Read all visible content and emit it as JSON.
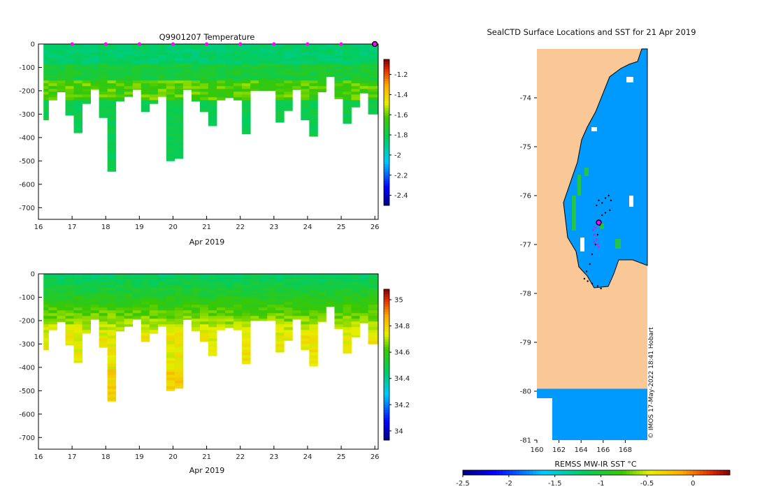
{
  "figure": {
    "credit": "© IMOS 17-May-2022 18:41 Hobart"
  },
  "chart_data": [
    {
      "type": "heatmap",
      "name": "temperature-section",
      "title": "Q9901207  Temperature",
      "xlabel": "Apr 2019",
      "xlim": [
        16,
        26.1
      ],
      "xticks": [
        16,
        17,
        18,
        19,
        20,
        21,
        22,
        23,
        24,
        25,
        26
      ],
      "ylabel": "",
      "ylim": [
        -750,
        0
      ],
      "yticks": [
        0,
        -100,
        -200,
        -300,
        -400,
        -500,
        -600,
        -700
      ],
      "colorbar": {
        "min": -2.5,
        "max": -1.05,
        "ticks": [
          -1.2,
          -1.4,
          -1.6,
          -1.8,
          -2,
          -2.2,
          -2.4
        ]
      },
      "surface_markers_days": [
        17,
        18,
        19,
        20,
        21,
        22,
        23,
        24,
        25
      ],
      "current_profile_day": 26,
      "profiles": [
        {
          "x0": 16.15,
          "x1": 16.3,
          "depth": 325
        },
        {
          "x0": 16.3,
          "x1": 16.55,
          "depth": 240
        },
        {
          "x0": 16.55,
          "x1": 16.8,
          "depth": 205
        },
        {
          "x0": 16.8,
          "x1": 17.05,
          "depth": 305
        },
        {
          "x0": 17.05,
          "x1": 17.3,
          "depth": 380
        },
        {
          "x0": 17.3,
          "x1": 17.55,
          "depth": 255
        },
        {
          "x0": 17.55,
          "x1": 17.8,
          "depth": 195
        },
        {
          "x0": 17.8,
          "x1": 18.05,
          "depth": 315
        },
        {
          "x0": 18.05,
          "x1": 18.3,
          "depth": 545
        },
        {
          "x0": 18.3,
          "x1": 18.55,
          "depth": 245
        },
        {
          "x0": 18.55,
          "x1": 18.8,
          "depth": 225
        },
        {
          "x0": 18.8,
          "x1": 19.05,
          "depth": 195
        },
        {
          "x0": 19.05,
          "x1": 19.3,
          "depth": 290
        },
        {
          "x0": 19.3,
          "x1": 19.55,
          "depth": 255
        },
        {
          "x0": 19.55,
          "x1": 19.8,
          "depth": 225
        },
        {
          "x0": 19.8,
          "x1": 20.05,
          "depth": 500
        },
        {
          "x0": 20.05,
          "x1": 20.3,
          "depth": 490
        },
        {
          "x0": 20.3,
          "x1": 20.55,
          "depth": 195
        },
        {
          "x0": 20.55,
          "x1": 20.8,
          "depth": 245
        },
        {
          "x0": 20.8,
          "x1": 21.05,
          "depth": 290
        },
        {
          "x0": 21.05,
          "x1": 21.3,
          "depth": 350
        },
        {
          "x0": 21.3,
          "x1": 21.55,
          "depth": 240
        },
        {
          "x0": 21.55,
          "x1": 21.8,
          "depth": 230
        },
        {
          "x0": 21.8,
          "x1": 22.05,
          "depth": 240
        },
        {
          "x0": 22.05,
          "x1": 22.3,
          "depth": 385
        },
        {
          "x0": 22.3,
          "x1": 22.55,
          "depth": 200
        },
        {
          "x0": 22.55,
          "x1": 22.8,
          "depth": 200
        },
        {
          "x0": 22.8,
          "x1": 23.05,
          "depth": 200
        },
        {
          "x0": 23.05,
          "x1": 23.3,
          "depth": 335
        },
        {
          "x0": 23.3,
          "x1": 23.55,
          "depth": 285
        },
        {
          "x0": 23.55,
          "x1": 23.8,
          "depth": 195
        },
        {
          "x0": 23.8,
          "x1": 24.05,
          "depth": 325
        },
        {
          "x0": 24.05,
          "x1": 24.3,
          "depth": 395
        },
        {
          "x0": 24.3,
          "x1": 24.55,
          "depth": 205
        },
        {
          "x0": 24.55,
          "x1": 24.8,
          "depth": 140
        },
        {
          "x0": 24.8,
          "x1": 25.05,
          "depth": 235
        },
        {
          "x0": 25.05,
          "x1": 25.3,
          "depth": 340
        },
        {
          "x0": 25.3,
          "x1": 25.55,
          "depth": 270
        },
        {
          "x0": 25.55,
          "x1": 25.8,
          "depth": 210
        },
        {
          "x0": 25.8,
          "x1": 26.1,
          "depth": 300
        }
      ],
      "typical_values": {
        "surface": -1.85,
        "mid": -1.75,
        "layer_200m": -1.55,
        "deep": -1.8
      }
    },
    {
      "type": "heatmap",
      "name": "salinity-section",
      "title": "",
      "xlabel": "Apr 2019",
      "xlim": [
        16,
        26.1
      ],
      "xticks": [
        16,
        17,
        18,
        19,
        20,
        21,
        22,
        23,
        24,
        25,
        26
      ],
      "ylabel": "",
      "ylim": [
        -750,
        0
      ],
      "yticks": [
        0,
        -100,
        -200,
        -300,
        -400,
        -500,
        -600,
        -700
      ],
      "colorbar": {
        "min": 33.93,
        "max": 35.08,
        "ticks": [
          35,
          34.8,
          34.6,
          34.4,
          34.2,
          34
        ]
      },
      "typical_values": {
        "surface": 34.45,
        "mid": 34.6,
        "deep": 34.75
      }
    },
    {
      "type": "heatmap",
      "name": "sst-map",
      "title": "SealCTD Surface Locations and SST for 21 Apr 2019",
      "xlabel": "",
      "xlim": [
        160,
        170
      ],
      "xticks": [
        160,
        162,
        164,
        166,
        168
      ],
      "ylim": [
        -81,
        -73
      ],
      "yticks": [
        -74,
        -75,
        -76,
        -77,
        -78,
        -79,
        -80,
        -81
      ],
      "colorbar": {
        "label": "REMSS MW-IR SST °C",
        "min": -2.5,
        "max": 0.4,
        "ticks": [
          -2.5,
          -2,
          -1.5,
          -1,
          -0.5,
          0
        ]
      },
      "sea_surface_temperature": -1.75,
      "track": [
        [
          165.4,
          -76.2
        ],
        [
          165.6,
          -76.1
        ],
        [
          165.9,
          -76.15
        ],
        [
          166.2,
          -76.05
        ],
        [
          166.5,
          -76.0
        ],
        [
          166.7,
          -76.1
        ],
        [
          166.6,
          -76.3
        ],
        [
          166.2,
          -76.35
        ],
        [
          165.9,
          -76.4
        ],
        [
          165.7,
          -76.6
        ],
        [
          165.5,
          -76.8
        ],
        [
          165.3,
          -77.0
        ],
        [
          165.0,
          -77.2
        ],
        [
          164.8,
          -77.4
        ],
        [
          164.5,
          -77.55
        ],
        [
          164.3,
          -77.7
        ],
        [
          164.6,
          -77.75
        ],
        [
          165.0,
          -77.8
        ],
        [
          165.5,
          -77.85
        ],
        [
          165.8,
          -77.9
        ]
      ],
      "recent_track": [
        [
          165.5,
          -76.55
        ],
        [
          165.3,
          -76.65
        ],
        [
          165.1,
          -76.7
        ],
        [
          165.2,
          -76.8
        ],
        [
          165.4,
          -76.9
        ],
        [
          165.2,
          -76.95
        ],
        [
          165.5,
          -77.0
        ],
        [
          165.6,
          -77.05
        ]
      ],
      "current_position": [
        165.6,
        -76.55
      ]
    }
  ]
}
